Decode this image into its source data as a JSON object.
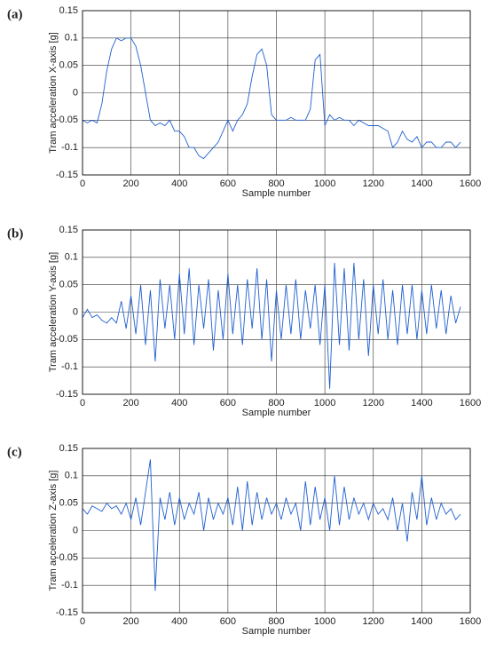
{
  "chart_data": [
    {
      "type": "line",
      "label": "(a)",
      "xlabel": "Sample number",
      "ylabel": "Tram acceleration X-axis [g]",
      "x": [
        0,
        20,
        40,
        60,
        80,
        100,
        120,
        140,
        160,
        180,
        200,
        220,
        240,
        260,
        280,
        300,
        320,
        340,
        360,
        380,
        400,
        420,
        440,
        460,
        480,
        500,
        520,
        540,
        560,
        580,
        600,
        620,
        640,
        660,
        680,
        700,
        720,
        740,
        760,
        780,
        800,
        820,
        840,
        860,
        880,
        900,
        920,
        940,
        960,
        980,
        1000,
        1020,
        1040,
        1060,
        1080,
        1100,
        1120,
        1140,
        1160,
        1180,
        1200,
        1220,
        1240,
        1260,
        1280,
        1300,
        1320,
        1340,
        1360,
        1380,
        1400,
        1420,
        1440,
        1460,
        1480,
        1500,
        1520,
        1540,
        1560
      ],
      "series": [
        {
          "name": "X-axis",
          "color": "#1f5fd0",
          "values": [
            -0.05,
            -0.055,
            -0.05,
            -0.055,
            -0.02,
            0.04,
            0.08,
            0.1,
            0.095,
            0.1,
            0.1,
            0.085,
            0.05,
            0.0,
            -0.05,
            -0.06,
            -0.055,
            -0.06,
            -0.05,
            -0.07,
            -0.07,
            -0.08,
            -0.1,
            -0.1,
            -0.115,
            -0.12,
            -0.11,
            -0.1,
            -0.09,
            -0.07,
            -0.05,
            -0.07,
            -0.05,
            -0.04,
            -0.02,
            0.03,
            0.07,
            0.08,
            0.05,
            -0.04,
            -0.05,
            -0.05,
            -0.05,
            -0.045,
            -0.05,
            -0.05,
            -0.05,
            -0.03,
            0.06,
            0.07,
            -0.06,
            -0.04,
            -0.05,
            -0.045,
            -0.05,
            -0.05,
            -0.06,
            -0.05,
            -0.055,
            -0.06,
            -0.06,
            -0.06,
            -0.065,
            -0.07,
            -0.1,
            -0.09,
            -0.07,
            -0.085,
            -0.09,
            -0.08,
            -0.1,
            -0.09,
            -0.09,
            -0.1,
            -0.1,
            -0.09,
            -0.09,
            -0.1,
            -0.09
          ]
        }
      ],
      "xlim": [
        0,
        1600
      ],
      "xticks": [
        0,
        200,
        400,
        600,
        800,
        1000,
        1200,
        1400,
        1600
      ],
      "ylim": [
        -0.15,
        0.15
      ],
      "yticks": [
        -0.15,
        -0.1,
        -0.05,
        0,
        0.05,
        0.1,
        0.15
      ],
      "grid": true
    },
    {
      "type": "line",
      "label": "(b)",
      "xlabel": "Sample number",
      "ylabel": "Tram acceleration Y-axis [g]",
      "x": [
        0,
        20,
        40,
        60,
        80,
        100,
        120,
        140,
        160,
        180,
        200,
        220,
        240,
        260,
        280,
        300,
        320,
        340,
        360,
        380,
        400,
        420,
        440,
        460,
        480,
        500,
        520,
        540,
        560,
        580,
        600,
        620,
        640,
        660,
        680,
        700,
        720,
        740,
        760,
        780,
        800,
        820,
        840,
        860,
        880,
        900,
        920,
        940,
        960,
        980,
        1000,
        1020,
        1040,
        1060,
        1080,
        1100,
        1120,
        1140,
        1160,
        1180,
        1200,
        1220,
        1240,
        1260,
        1280,
        1300,
        1320,
        1340,
        1360,
        1380,
        1400,
        1420,
        1440,
        1460,
        1480,
        1500,
        1520,
        1540,
        1560
      ],
      "series": [
        {
          "name": "Y-axis",
          "color": "#1f5fd0",
          "values": [
            -0.01,
            0.005,
            -0.01,
            -0.005,
            -0.015,
            -0.02,
            -0.01,
            -0.02,
            0.02,
            -0.03,
            0.03,
            -0.04,
            0.05,
            -0.06,
            0.04,
            -0.09,
            0.06,
            -0.03,
            0.05,
            -0.05,
            0.07,
            -0.04,
            0.08,
            -0.06,
            0.05,
            -0.03,
            0.06,
            -0.07,
            0.04,
            -0.05,
            0.07,
            -0.04,
            0.05,
            -0.06,
            0.06,
            -0.03,
            0.08,
            -0.05,
            0.06,
            -0.09,
            0.04,
            -0.05,
            0.05,
            -0.04,
            0.06,
            -0.05,
            0.04,
            -0.03,
            0.05,
            -0.06,
            0.05,
            -0.14,
            0.09,
            -0.06,
            0.08,
            -0.07,
            0.09,
            -0.05,
            0.06,
            -0.08,
            0.05,
            -0.04,
            0.06,
            -0.05,
            0.04,
            -0.06,
            0.05,
            -0.04,
            0.05,
            -0.05,
            0.04,
            -0.04,
            0.05,
            -0.03,
            0.04,
            -0.04,
            0.03,
            -0.02,
            0.01
          ]
        }
      ],
      "xlim": [
        0,
        1600
      ],
      "xticks": [
        0,
        200,
        400,
        600,
        800,
        1000,
        1200,
        1400,
        1600
      ],
      "ylim": [
        -0.15,
        0.15
      ],
      "yticks": [
        -0.15,
        -0.1,
        -0.05,
        0,
        0.05,
        0.1,
        0.15
      ],
      "grid": true
    },
    {
      "type": "line",
      "label": "(c)",
      "xlabel": "Sample number",
      "ylabel": "Tram acceleration Z-axis [g]",
      "x": [
        0,
        20,
        40,
        60,
        80,
        100,
        120,
        140,
        160,
        180,
        200,
        220,
        240,
        260,
        280,
        300,
        320,
        340,
        360,
        380,
        400,
        420,
        440,
        460,
        480,
        500,
        520,
        540,
        560,
        580,
        600,
        620,
        640,
        660,
        680,
        700,
        720,
        740,
        760,
        780,
        800,
        820,
        840,
        860,
        880,
        900,
        920,
        940,
        960,
        980,
        1000,
        1020,
        1040,
        1060,
        1080,
        1100,
        1120,
        1140,
        1160,
        1180,
        1200,
        1220,
        1240,
        1260,
        1280,
        1300,
        1320,
        1340,
        1360,
        1380,
        1400,
        1420,
        1440,
        1460,
        1480,
        1500,
        1520,
        1540,
        1560
      ],
      "series": [
        {
          "name": "Z-axis",
          "color": "#1f5fd0",
          "values": [
            0.04,
            0.03,
            0.045,
            0.04,
            0.035,
            0.05,
            0.04,
            0.045,
            0.03,
            0.05,
            0.02,
            0.06,
            0.01,
            0.07,
            0.13,
            -0.11,
            0.06,
            0.02,
            0.07,
            0.01,
            0.06,
            0.02,
            0.05,
            0.03,
            0.07,
            0.0,
            0.06,
            0.02,
            0.05,
            0.03,
            0.06,
            0.01,
            0.08,
            0.0,
            0.09,
            0.01,
            0.07,
            0.02,
            0.06,
            0.03,
            0.05,
            0.02,
            0.06,
            0.03,
            0.05,
            0.0,
            0.09,
            0.01,
            0.08,
            0.02,
            0.06,
            0.0,
            0.1,
            0.01,
            0.08,
            0.02,
            0.06,
            0.03,
            0.05,
            0.02,
            0.05,
            0.03,
            0.04,
            0.02,
            0.06,
            0.0,
            0.05,
            -0.02,
            0.07,
            0.02,
            0.1,
            0.01,
            0.06,
            0.02,
            0.05,
            0.03,
            0.04,
            0.02,
            0.03
          ]
        }
      ],
      "xlim": [
        0,
        1600
      ],
      "xticks": [
        0,
        200,
        400,
        600,
        800,
        1000,
        1200,
        1400,
        1600
      ],
      "ylim": [
        -0.15,
        0.15
      ],
      "yticks": [
        -0.15,
        -0.1,
        -0.05,
        0,
        0.05,
        0.1,
        0.15
      ],
      "grid": true
    }
  ]
}
